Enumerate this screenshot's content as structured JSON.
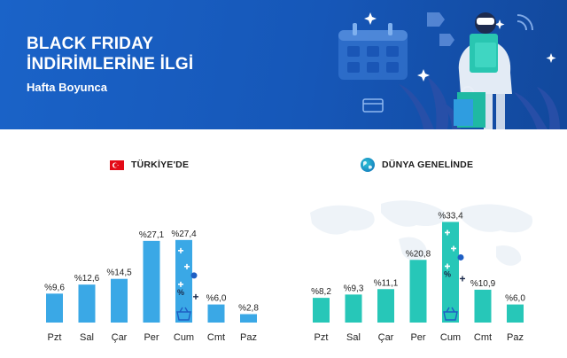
{
  "header": {
    "title_line1": "BLACK FRIDAY",
    "title_line2": "İNDİRİMLERİNE İLGİ",
    "subtitle": "Hafta Boyunca"
  },
  "colors": {
    "header_bg": "#1a63c8",
    "turkey_bar": "#3aa8e6",
    "world_bar": "#27c7b8",
    "highlight_accent": "#1e5fc4",
    "flag_red": "#e30a17"
  },
  "chart_data": [
    {
      "type": "bar",
      "title": "TÜRKİYE'DE",
      "categories": [
        "Pzt",
        "Sal",
        "Çar",
        "Per",
        "Cum",
        "Cmt",
        "Paz"
      ],
      "values": [
        9.6,
        12.6,
        14.5,
        27.1,
        27.4,
        6.0,
        2.8
      ],
      "value_labels": [
        "%9,6",
        "%12,6",
        "%14,5",
        "%27,1",
        "%27,4",
        "%6,0",
        "%2,8"
      ],
      "highlight": "Cum",
      "icon": "turkey-flag-icon"
    },
    {
      "type": "bar",
      "title": "DÜNYA GENELİNDE",
      "categories": [
        "Pzt",
        "Sal",
        "Çar",
        "Per",
        "Cum",
        "Cmt",
        "Paz"
      ],
      "values": [
        8.2,
        9.3,
        11.1,
        20.8,
        33.4,
        10.9,
        6.0
      ],
      "value_labels": [
        "%8,2",
        "%9,3",
        "%11,1",
        "%20,8",
        "%33,4",
        "%10,9",
        "%6,0"
      ],
      "highlight": "Cum",
      "icon": "globe-icon"
    }
  ]
}
